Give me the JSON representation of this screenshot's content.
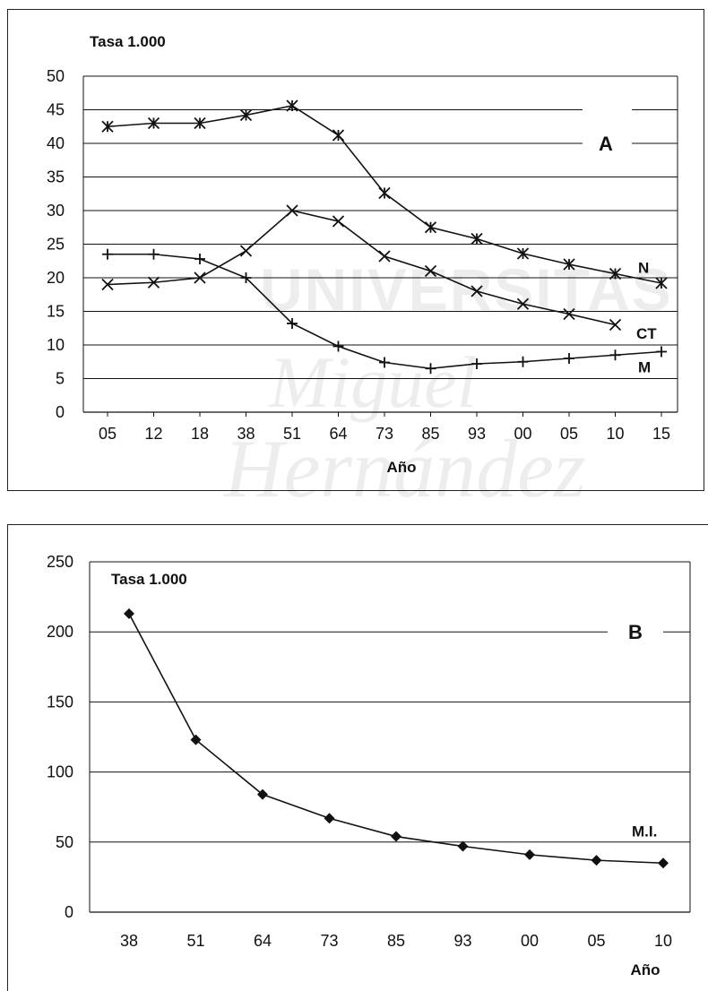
{
  "watermark": [
    "UNIVERSITAS",
    "Miguel",
    "Hernández"
  ],
  "chart_data": [
    {
      "type": "line",
      "panel_label": "A",
      "title": "Tasa 1.000",
      "xlabel": "Año",
      "ylabel": "",
      "categories": [
        "05",
        "12",
        "18",
        "38",
        "51",
        "64",
        "73",
        "85",
        "93",
        "00",
        "05",
        "10",
        "15"
      ],
      "ylim": [
        0,
        50
      ],
      "yticks": [
        0,
        5,
        10,
        15,
        20,
        25,
        30,
        35,
        40,
        45,
        50
      ],
      "grid": "horizontal",
      "series": [
        {
          "name": "N",
          "marker": "star",
          "values": [
            42.5,
            43,
            43,
            44.2,
            45.6,
            41.2,
            32.6,
            27.5,
            25.8,
            23.6,
            22,
            20.6,
            19.2
          ]
        },
        {
          "name": "CT",
          "marker": "x",
          "values": [
            19,
            19.3,
            20,
            24,
            30,
            28.4,
            23.2,
            21,
            18,
            16.1,
            14.6,
            13,
            null
          ]
        },
        {
          "name": "M",
          "marker": "plus",
          "values": [
            23.5,
            23.5,
            22.8,
            20,
            13.2,
            9.8,
            7.4,
            6.5,
            7.2,
            7.5,
            8,
            8.5,
            9
          ]
        }
      ]
    },
    {
      "type": "line",
      "panel_label": "B",
      "title": "Tasa 1.000",
      "xlabel": "Año",
      "ylabel": "",
      "categories": [
        "38",
        "51",
        "64",
        "73",
        "85",
        "93",
        "00",
        "05",
        "10"
      ],
      "ylim": [
        0,
        250
      ],
      "yticks": [
        0,
        50,
        100,
        150,
        200,
        250
      ],
      "grid": "horizontal",
      "series": [
        {
          "name": "M.I.",
          "marker": "diamond",
          "values": [
            213,
            123,
            84,
            67,
            54,
            47,
            41,
            37,
            35
          ]
        }
      ]
    }
  ]
}
